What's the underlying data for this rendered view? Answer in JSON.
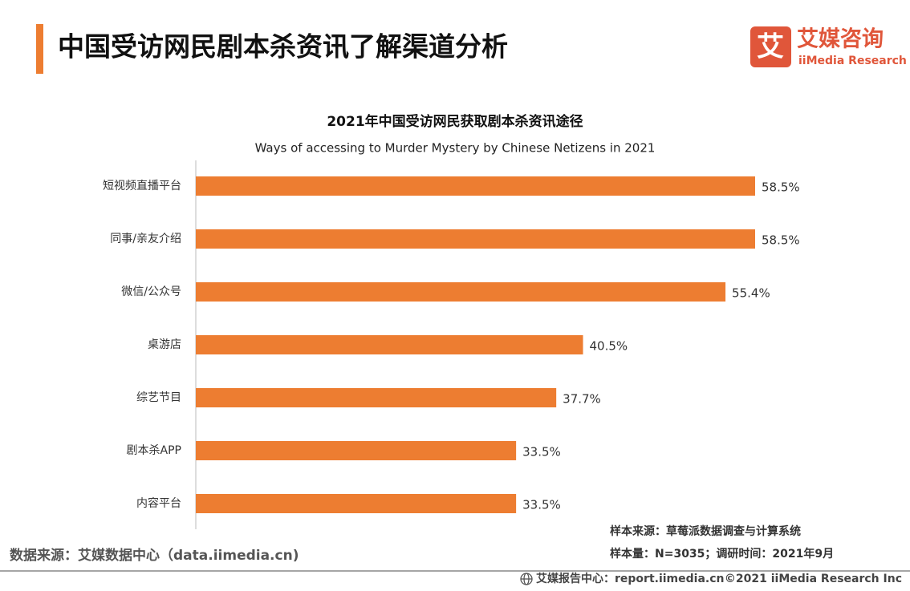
{
  "header": {
    "title": "中国受访网民剧本杀资讯了解渠道分析"
  },
  "logo": {
    "icon_text": "艾",
    "name": "艾媒咨询",
    "sub": "iiMedia Research"
  },
  "chart_data": {
    "type": "bar",
    "orientation": "horizontal",
    "title": "2021年中国受访网民获取剧本杀资讯途径",
    "subtitle": "Ways of accessing to Murder Mystery by Chinese Netizens in 2021",
    "categories": [
      "短视频直播平台",
      "同事/亲友介绍",
      "微信/公众号",
      "桌游店",
      "综艺节目",
      "剧本杀APP",
      "内容平台"
    ],
    "values": [
      58.5,
      58.5,
      55.4,
      40.5,
      37.7,
      33.5,
      33.5
    ],
    "value_labels": [
      "58.5%",
      "58.5%",
      "55.4%",
      "40.5%",
      "37.7%",
      "33.5%",
      "33.5%"
    ],
    "color": "#ed7d31",
    "xlim": [
      0,
      70
    ]
  },
  "notes": {
    "sample_source": "样本来源：草莓派数据调查与计算系统",
    "sample_size": "样本量：N=3035；调研时间：2021年9月"
  },
  "source": "数据来源：艾媒数据中心（data.iimedia.cn)",
  "footer": {
    "report": "艾媒报告中心：report.iimedia.cn",
    "copyright": "©2021  iiMedia Research  Inc"
  }
}
